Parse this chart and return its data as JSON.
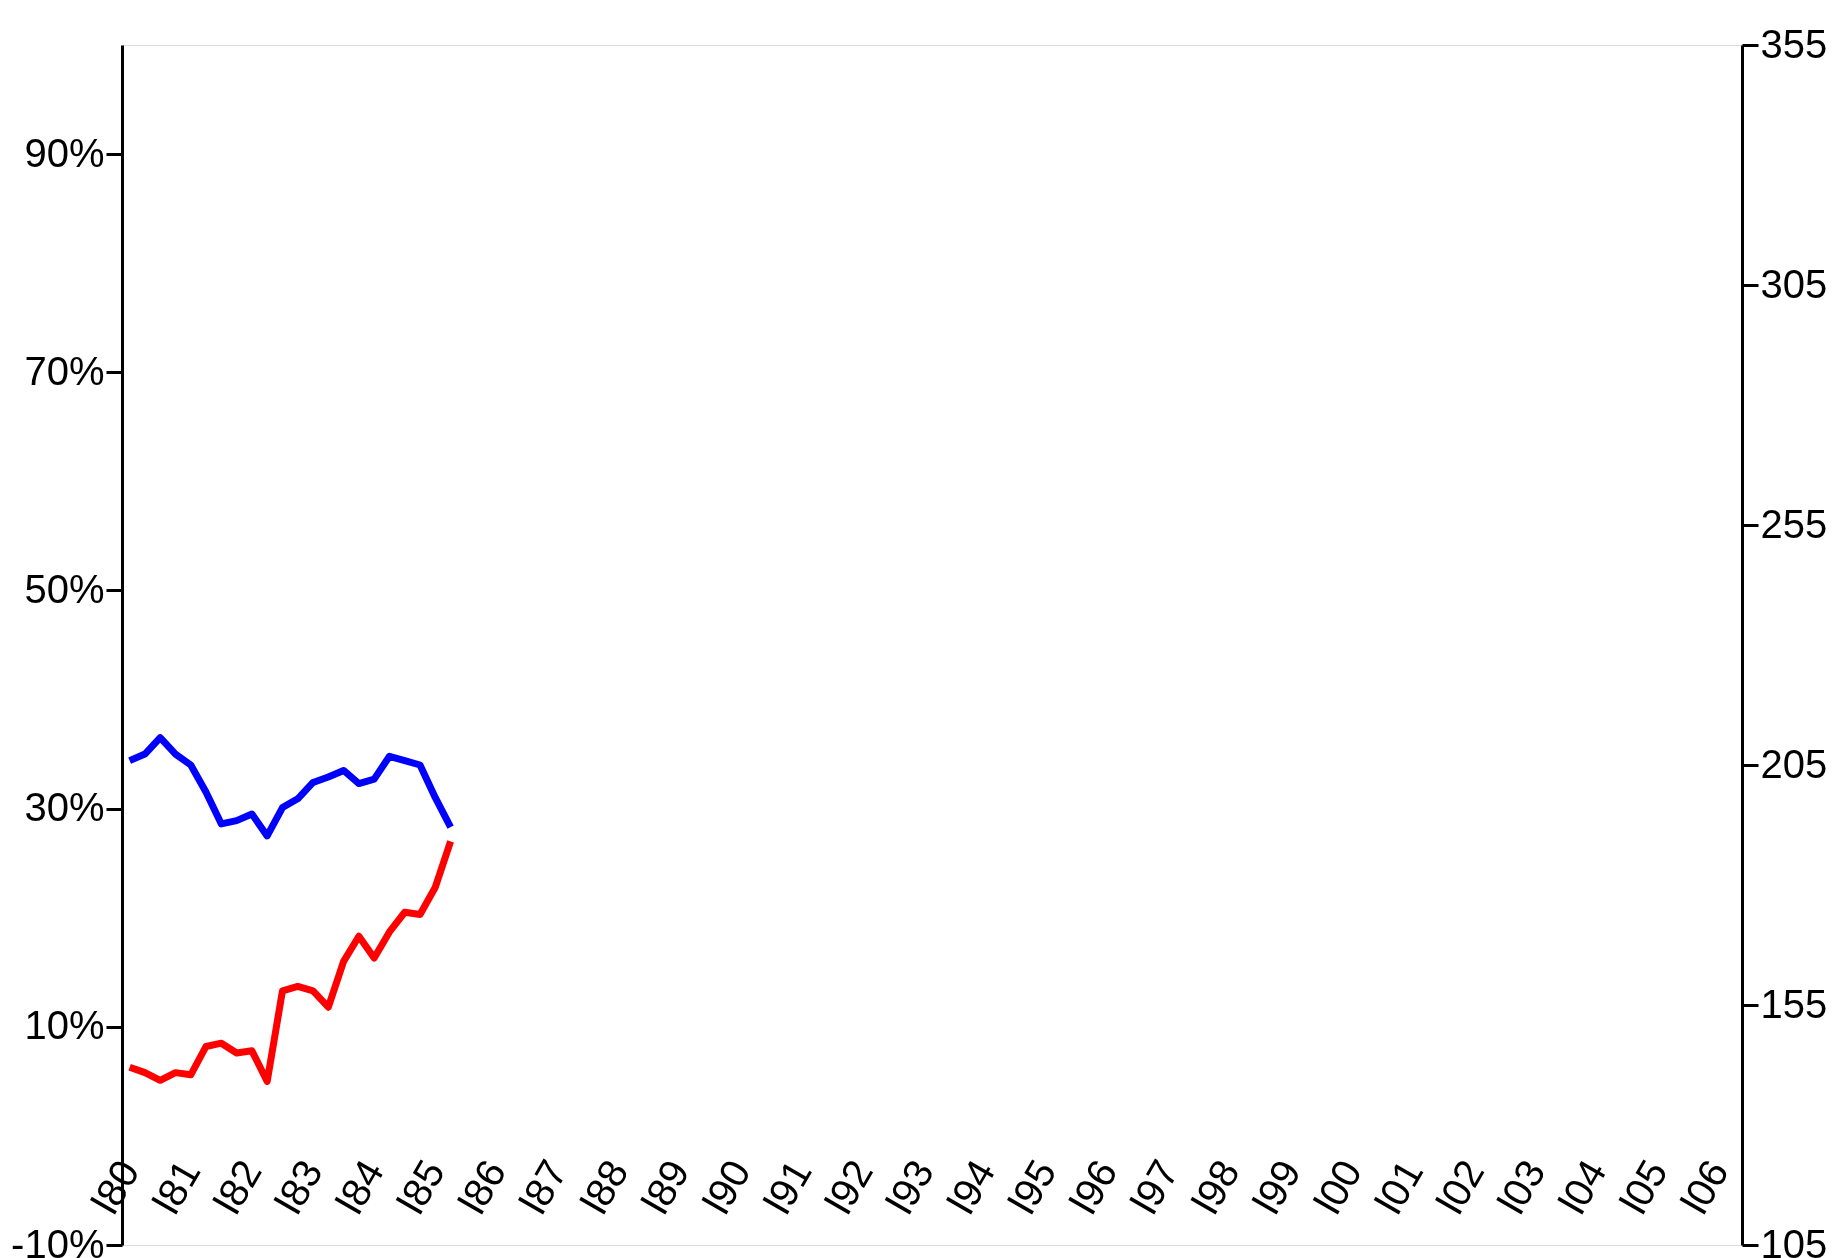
{
  "chart_data": {
    "type": "line",
    "grid": false,
    "line_style": "solid",
    "marker": "none",
    "categories": [
      "l80",
      null,
      null,
      null,
      "l81",
      null,
      null,
      null,
      "l82",
      null,
      null,
      null,
      "l83",
      null,
      null,
      null,
      "l84",
      null,
      null,
      null,
      "l85",
      null,
      null,
      null,
      "l86",
      null,
      null,
      null,
      "l87",
      null,
      null,
      null,
      "l88",
      null,
      null,
      null,
      "l89",
      null,
      null,
      null,
      "l90",
      null,
      null,
      null,
      "l91",
      null,
      null,
      null,
      "l92",
      null,
      null,
      null,
      "l93",
      null,
      null,
      null,
      "l94",
      null,
      null,
      null,
      "l95",
      null,
      null,
      null,
      "l96",
      null,
      null,
      null,
      "l97",
      null,
      null,
      null,
      "l98",
      null,
      null,
      null,
      "l99",
      null,
      null,
      null,
      "l00",
      null,
      null,
      null,
      "l01",
      null,
      null,
      null,
      "l02",
      null,
      null,
      null,
      "l03",
      null,
      null,
      null,
      "l04",
      null,
      null,
      null,
      "l05",
      null,
      null,
      null,
      "l06",
      null
    ],
    "ylim": [
      -10,
      100
    ],
    "yticks": [
      {
        "value": -10,
        "label": "-10%"
      },
      {
        "value": 10,
        "label": "10%"
      },
      {
        "value": 30,
        "label": "30%"
      },
      {
        "value": 50,
        "label": "50%"
      },
      {
        "value": 70,
        "label": "70%"
      },
      {
        "value": 90,
        "label": "90%"
      }
    ],
    "y2lim": [
      105,
      355
    ],
    "y2ticks": [
      105,
      155,
      205,
      255,
      305,
      355
    ],
    "series": [
      {
        "color": "#0000ff",
        "values": [
          34.4,
          35.0,
          36.5,
          35.0,
          34.0,
          31.5,
          28.6,
          28.9,
          29.5,
          27.5,
          30.1,
          30.9,
          32.4,
          32.9,
          33.5,
          32.3,
          32.7,
          34.8,
          34.4,
          34.0,
          31.0,
          28.3,
          null,
          null,
          null,
          null,
          null,
          null,
          null,
          null,
          null,
          null,
          null,
          null,
          null,
          null,
          null,
          null,
          null,
          null,
          null,
          null,
          null,
          null,
          null,
          null,
          null,
          null,
          null,
          null,
          null,
          null,
          null,
          null,
          null,
          null,
          null,
          null,
          null,
          null,
          null,
          null,
          null,
          null,
          null,
          null,
          null,
          null,
          null,
          null,
          null,
          null,
          null,
          null,
          null,
          null,
          null,
          null,
          null,
          null,
          null,
          null,
          null,
          null,
          null,
          null,
          null,
          null,
          null,
          null,
          null,
          null,
          null,
          null,
          null,
          null,
          null,
          null,
          null,
          null,
          null,
          null,
          null,
          null,
          null,
          null
        ]
      },
      {
        "color": "#ff0000",
        "values": [
          6.3,
          5.8,
          5.1,
          5.8,
          5.6,
          8.2,
          8.5,
          7.6,
          7.8,
          5.0,
          13.3,
          13.7,
          13.3,
          11.8,
          16.0,
          18.3,
          16.3,
          18.7,
          20.5,
          20.3,
          22.8,
          27.0,
          null,
          null,
          null,
          null,
          null,
          null,
          null,
          null,
          null,
          null,
          null,
          null,
          null,
          null,
          null,
          null,
          null,
          null,
          null,
          null,
          null,
          null,
          null,
          null,
          null,
          null,
          null,
          null,
          null,
          null,
          null,
          null,
          null,
          null,
          null,
          null,
          null,
          null,
          null,
          null,
          null,
          null,
          null,
          null,
          null,
          null,
          null,
          null,
          null,
          null,
          null,
          null,
          null,
          null,
          null,
          null,
          null,
          null,
          null,
          null,
          null,
          null,
          null,
          null,
          null,
          null,
          null,
          null,
          null,
          null,
          null,
          null,
          null,
          null,
          null,
          null,
          null,
          null,
          null,
          null,
          null,
          null,
          null,
          null
        ]
      }
    ]
  }
}
